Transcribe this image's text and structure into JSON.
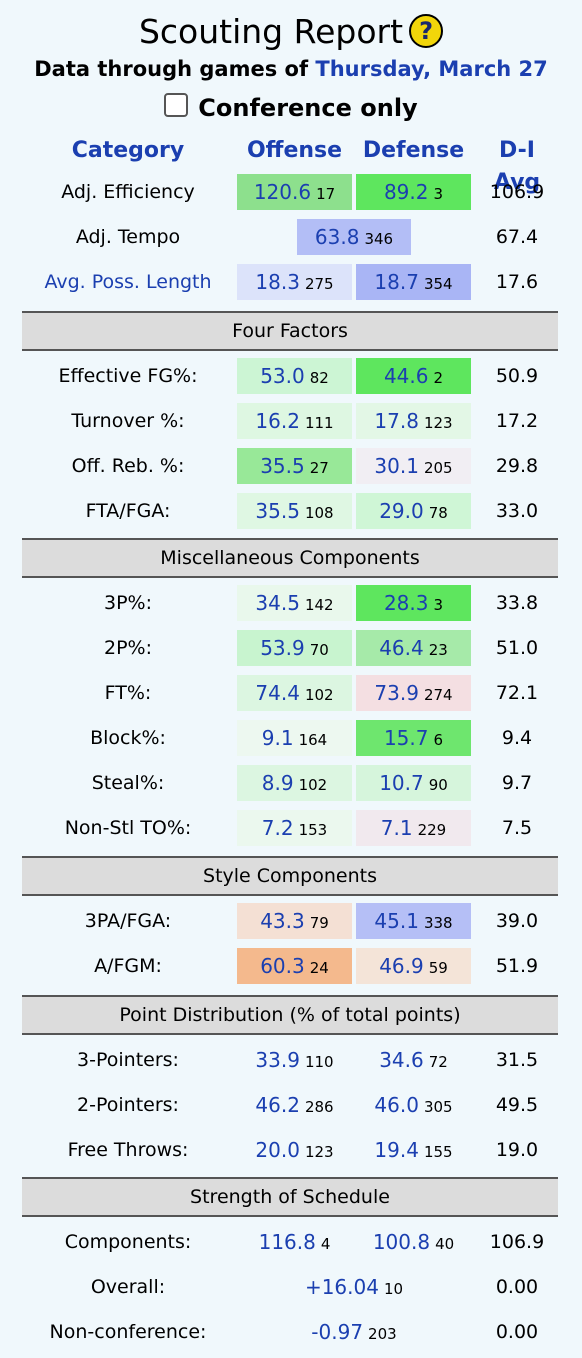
{
  "title": "Scouting Report",
  "help_glyph": "?",
  "subtitle": {
    "prefix": "Data through games of",
    "date": "Thursday, March 27"
  },
  "conference_only": {
    "label": "Conference only",
    "checked": false
  },
  "headers": {
    "category": "Category",
    "offense": "Offense",
    "defense": "Defense",
    "avg": "D-I Avg"
  },
  "top_rows": [
    {
      "label": "Adj. Efficiency",
      "link": false,
      "off": {
        "value": "120.6",
        "rank": "17",
        "color": "#8de08d"
      },
      "def": {
        "value": "89.2",
        "rank": "3",
        "color": "#5ee65e"
      },
      "avg": "106.9"
    },
    {
      "label": "Adj. Tempo",
      "link": false,
      "center": {
        "value": "63.8",
        "rank": "346",
        "color": "#b3bef6"
      },
      "avg": "67.4"
    },
    {
      "label": "Avg. Poss. Length",
      "link": true,
      "off": {
        "value": "18.3",
        "rank": "275",
        "color": "#dce3fa"
      },
      "def": {
        "value": "18.7",
        "rank": "354",
        "color": "#a9b5f5"
      },
      "avg": "17.6"
    }
  ],
  "sections": [
    {
      "title": "Four Factors",
      "rows": [
        {
          "label": "Effective FG%:",
          "off": {
            "value": "53.0",
            "rank": "82",
            "color": "#ccf5d4"
          },
          "def": {
            "value": "44.6",
            "rank": "2",
            "color": "#5ee65e"
          },
          "avg": "50.9"
        },
        {
          "label": "Turnover %:",
          "off": {
            "value": "16.2",
            "rank": "111",
            "color": "#def7e2"
          },
          "def": {
            "value": "17.8",
            "rank": "123",
            "color": "#e3f7e6"
          },
          "avg": "17.2"
        },
        {
          "label": "Off. Reb. %:",
          "off": {
            "value": "35.5",
            "rank": "27",
            "color": "#98e898"
          },
          "def": {
            "value": "30.1",
            "rank": "205",
            "color": "#f1eef3"
          },
          "avg": "29.8"
        },
        {
          "label": "FTA/FGA:",
          "off": {
            "value": "35.5",
            "rank": "108",
            "color": "#dff7e3"
          },
          "def": {
            "value": "29.0",
            "rank": "78",
            "color": "#cff6d6"
          },
          "avg": "33.0"
        }
      ]
    },
    {
      "title": "Miscellaneous Components",
      "rows": [
        {
          "label": "3P%:",
          "off": {
            "value": "34.5",
            "rank": "142",
            "color": "#e9f8ec"
          },
          "def": {
            "value": "28.3",
            "rank": "3",
            "color": "#5ee65e"
          },
          "avg": "33.8"
        },
        {
          "label": "2P%:",
          "off": {
            "value": "53.9",
            "rank": "70",
            "color": "#c8f4cf"
          },
          "def": {
            "value": "46.4",
            "rank": "23",
            "color": "#a6eaa9"
          },
          "avg": "51.0"
        },
        {
          "label": "FT%:",
          "off": {
            "value": "74.4",
            "rank": "102",
            "color": "#dcf6e1"
          },
          "def": {
            "value": "73.9",
            "rank": "274",
            "color": "#f4dfe2"
          },
          "avg": "72.1"
        },
        {
          "label": "Block%:",
          "off": {
            "value": "9.1",
            "rank": "164",
            "color": "#edf8f0"
          },
          "def": {
            "value": "15.7",
            "rank": "6",
            "color": "#6ee66e"
          },
          "avg": "9.4"
        },
        {
          "label": "Steal%:",
          "off": {
            "value": "8.9",
            "rank": "102",
            "color": "#dcf6e1"
          },
          "def": {
            "value": "10.7",
            "rank": "90",
            "color": "#d6f5dc"
          },
          "avg": "9.7"
        },
        {
          "label": "Non-Stl TO%:",
          "off": {
            "value": "7.2",
            "rank": "153",
            "color": "#ebf8ee"
          },
          "def": {
            "value": "7.1",
            "rank": "229",
            "color": "#f1e9ee"
          },
          "avg": "7.5"
        }
      ]
    },
    {
      "title": "Style Components",
      "rows": [
        {
          "label": "3PA/FGA:",
          "off": {
            "value": "43.3",
            "rank": "79",
            "color": "#f4e0d4"
          },
          "def": {
            "value": "45.1",
            "rank": "338",
            "color": "#b5bff6"
          },
          "avg": "39.0"
        },
        {
          "label": "A/FGM:",
          "off": {
            "value": "60.3",
            "rank": "24",
            "color": "#f4b98d"
          },
          "def": {
            "value": "46.9",
            "rank": "59",
            "color": "#f4e4d8"
          },
          "avg": "51.9"
        }
      ]
    },
    {
      "title": "Point Distribution (% of total points)",
      "rows": [
        {
          "label": "3-Pointers:",
          "off": {
            "value": "33.9",
            "rank": "110"
          },
          "def": {
            "value": "34.6",
            "rank": "72"
          },
          "avg": "31.5"
        },
        {
          "label": "2-Pointers:",
          "off": {
            "value": "46.2",
            "rank": "286"
          },
          "def": {
            "value": "46.0",
            "rank": "305"
          },
          "avg": "49.5"
        },
        {
          "label": "Free Throws:",
          "off": {
            "value": "20.0",
            "rank": "123"
          },
          "def": {
            "value": "19.4",
            "rank": "155"
          },
          "avg": "19.0"
        }
      ]
    },
    {
      "title": "Strength of Schedule",
      "rows": [
        {
          "label": "Components:",
          "off": {
            "value": "116.8",
            "rank": "4"
          },
          "def": {
            "value": "100.8",
            "rank": "40"
          },
          "avg": "106.9"
        },
        {
          "label": "Overall:",
          "center": {
            "value": "+16.04",
            "rank": "10"
          },
          "avg": "0.00"
        },
        {
          "label": "Non-conference:",
          "center": {
            "value": "-0.97",
            "rank": "203"
          },
          "avg": "0.00"
        }
      ]
    }
  ]
}
